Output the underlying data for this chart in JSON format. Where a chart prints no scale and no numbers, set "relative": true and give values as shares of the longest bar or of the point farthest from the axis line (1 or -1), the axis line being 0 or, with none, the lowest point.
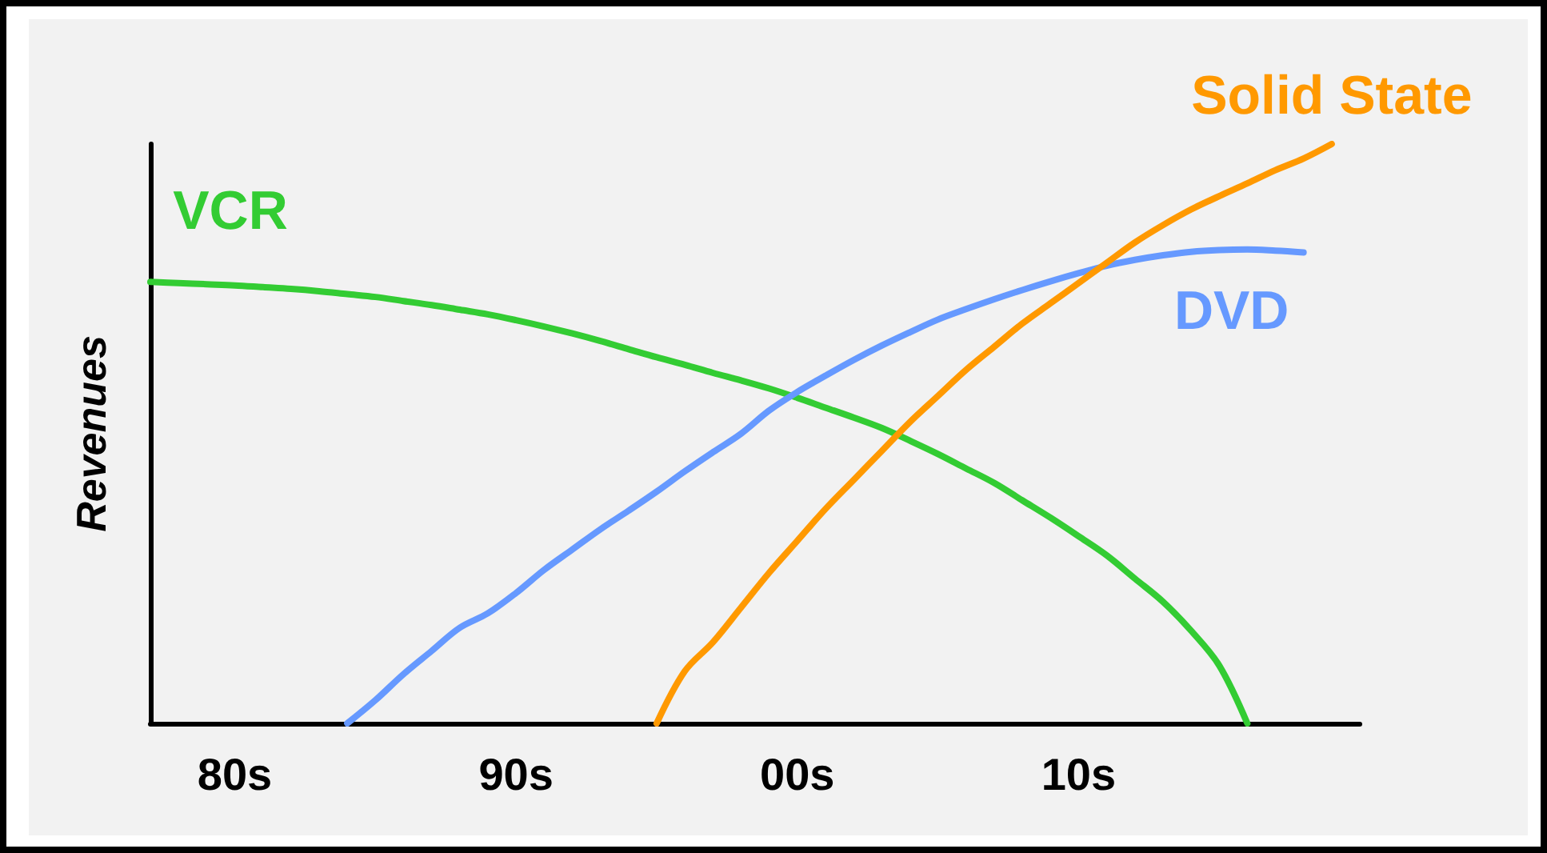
{
  "chart_data": {
    "type": "line",
    "relative": true,
    "ylabel": "Revenues",
    "grid": false,
    "legend": false,
    "marker": "none",
    "line_style": "solid",
    "categories": [
      null,
      null,
      null,
      "80s",
      null,
      null,
      null,
      null,
      null,
      null,
      null,
      null,
      null,
      "90s",
      null,
      null,
      null,
      null,
      null,
      null,
      null,
      null,
      null,
      "00s",
      null,
      null,
      null,
      null,
      null,
      null,
      null,
      null,
      null,
      "10s",
      null,
      null,
      null,
      null,
      null,
      null,
      null,
      null,
      null,
      null
    ],
    "series": [
      {
        "name": "VCR",
        "color": "#33cc33",
        "values": [
          0.762,
          0.76,
          0.758,
          0.756,
          0.753,
          0.75,
          0.746,
          0.741,
          0.736,
          0.729,
          0.722,
          0.714,
          0.706,
          0.696,
          0.685,
          0.673,
          0.66,
          0.646,
          0.632,
          0.619,
          0.605,
          0.592,
          0.578,
          0.562,
          0.545,
          0.528,
          0.51,
          0.488,
          0.465,
          0.44,
          0.415,
          0.385,
          0.355,
          0.323,
          0.29,
          0.25,
          0.21,
          0.16,
          0.1,
          0,
          null,
          null,
          null,
          null
        ]
      },
      {
        "name": "DVD",
        "color": "#6699ff",
        "values": [
          null,
          null,
          null,
          null,
          null,
          null,
          null,
          0,
          0.04,
          0.085,
          0.125,
          0.165,
          0.19,
          0.225,
          0.265,
          0.3,
          0.335,
          0.367,
          0.4,
          0.435,
          0.468,
          0.5,
          0.54,
          0.572,
          0.6,
          0.627,
          0.652,
          0.675,
          0.697,
          0.715,
          0.732,
          0.748,
          0.763,
          0.777,
          0.79,
          0.8,
          0.808,
          0.814,
          0.817,
          0.818,
          0.816,
          0.813,
          null,
          null
        ]
      },
      {
        "name": "Solid State",
        "color": "#ff9900",
        "values": [
          null,
          null,
          null,
          null,
          null,
          null,
          null,
          null,
          null,
          null,
          null,
          null,
          null,
          null,
          null,
          null,
          null,
          null,
          0,
          0.09,
          0.14,
          0.2,
          0.26,
          0.315,
          0.37,
          0.42,
          0.47,
          0.52,
          0.565,
          0.61,
          0.65,
          0.69,
          0.725,
          0.76,
          0.795,
          0.83,
          0.86,
          0.887,
          0.91,
          0.932,
          0.955,
          0.975,
          1,
          null
        ]
      }
    ]
  }
}
